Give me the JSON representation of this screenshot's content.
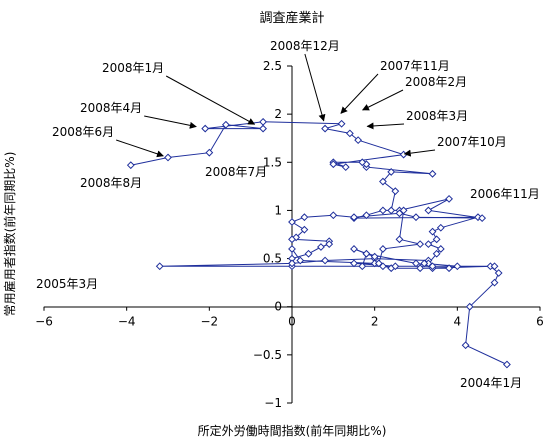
{
  "chart_data": {
    "type": "scatter",
    "title": "調査産業計",
    "xlabel": "所定外労働時間指数(前年同期比%)",
    "ylabel": "常用雇用者指数(前年同期比%)",
    "xlim": [
      -6,
      6
    ],
    "ylim": [
      -1,
      2.5
    ],
    "x_ticks": [
      "−6",
      "−4",
      "−2",
      "0",
      "2",
      "4",
      "6"
    ],
    "y_ticks": [
      "−1",
      "−0.5",
      "0",
      "0.5",
      "1",
      "1.5",
      "2",
      "2.5"
    ],
    "grid": false,
    "legend": "none",
    "line_color": "#1f2f9c",
    "series": [
      {
        "x": [
          5.2,
          4.2,
          4.3,
          4.9,
          5.0,
          4.8,
          3.4,
          3.1,
          4.9,
          2.2,
          0.0,
          -3.2,
          0.0,
          0.8,
          2.0,
          3.3,
          3.3,
          3.5,
          3.6,
          3.3,
          3.5,
          3.4,
          3.6,
          4.5,
          1.5,
          1.8,
          2.2,
          2.6,
          3.8,
          3.3,
          4.6,
          3.0,
          2.6,
          1.5,
          1.0,
          0.3,
          0.0,
          0.3,
          0.1,
          0.0,
          0.9,
          0.9,
          0.7,
          0.4,
          0.0,
          0.0,
          0.0,
          0.2,
          2.0,
          2.4,
          3.8,
          4.0,
          3.2,
          3.4,
          3.0,
          1.8,
          2.0,
          1.5,
          1.8,
          1.7,
          2.5,
          1.5,
          2.1,
          2.2,
          3.1,
          2.6,
          2.7,
          2.4,
          2.5,
          2.2,
          2.4,
          3.4,
          1.8,
          1.8,
          1.7,
          1.0,
          1.3,
          1.0,
          2.7,
          1.6,
          1.4,
          0.8,
          1.2,
          -0.7,
          -2.1,
          -0.7,
          -1.6,
          -2.0,
          -3.0,
          -3.9
        ],
        "y": [
          -0.6,
          -0.4,
          0.0,
          0.25,
          0.35,
          0.42,
          0.4,
          0.4,
          0.42,
          0.42,
          0.42,
          0.42,
          0.45,
          0.48,
          0.5,
          0.48,
          0.45,
          0.55,
          0.6,
          0.65,
          0.7,
          0.78,
          0.82,
          0.93,
          0.92,
          0.95,
          1.0,
          1.0,
          1.12,
          1.0,
          0.92,
          0.93,
          0.97,
          0.93,
          0.95,
          0.93,
          0.88,
          0.8,
          0.72,
          0.7,
          0.68,
          0.65,
          0.62,
          0.55,
          0.5,
          0.45,
          0.6,
          0.48,
          0.45,
          0.4,
          0.4,
          0.42,
          0.45,
          0.42,
          0.45,
          0.55,
          0.52,
          0.6,
          0.55,
          0.42,
          0.42,
          0.45,
          0.45,
          0.6,
          0.65,
          0.7,
          1.0,
          1.0,
          1.2,
          1.3,
          1.4,
          1.38,
          1.45,
          1.48,
          1.5,
          1.5,
          1.45,
          1.48,
          1.58,
          1.73,
          1.8,
          1.85,
          1.9,
          1.92,
          1.85,
          1.85,
          1.89,
          1.6,
          1.55,
          1.47
        ]
      }
    ],
    "annotations": [
      {
        "text": "2008年12月",
        "x": 0.8,
        "y": 1.88
      },
      {
        "text": "2007年11月",
        "x": 1.1,
        "y": 1.97
      },
      {
        "text": "2008年2月",
        "x": 1.6,
        "y": 2.02
      },
      {
        "text": "2008年1月",
        "x": -0.8,
        "y": 1.87
      },
      {
        "text": "2008年3月",
        "x": 1.7,
        "y": 1.87
      },
      {
        "text": "2008年4月",
        "x": -2.2,
        "y": 1.86
      },
      {
        "text": "2007年10月",
        "x": 2.6,
        "y": 1.58
      },
      {
        "text": "2008年6月",
        "x": -3.0,
        "y": 1.55
      },
      {
        "text": "2008年7月",
        "x": -1.6,
        "y": 1.56
      },
      {
        "text": "2008年8月",
        "x": -3.9,
        "y": 1.47
      },
      {
        "text": "2006年11月",
        "x": 4.5,
        "y": 0.92
      },
      {
        "text": "2005年3月",
        "x": -3.2,
        "y": 0.42
      },
      {
        "text": "2004年1月",
        "x": 5.2,
        "y": -0.6
      }
    ]
  }
}
